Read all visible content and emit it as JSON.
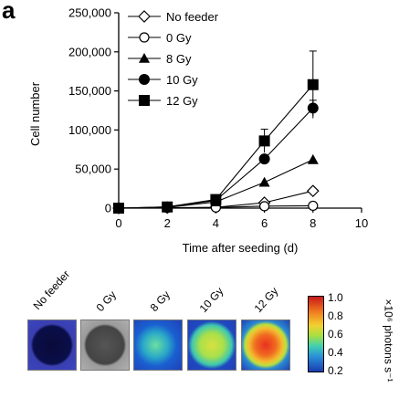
{
  "panel_label": "a",
  "chart_data": {
    "type": "line",
    "xlabel": "Time after seeding (d)",
    "ylabel": "Cell number",
    "xlim": [
      0,
      10
    ],
    "ylim": [
      0,
      250000
    ],
    "xticks": [
      "0",
      "2",
      "4",
      "6",
      "8",
      "10"
    ],
    "yticks": [
      "0",
      "50,000",
      "100,000",
      "150,000",
      "200,000",
      "250,000"
    ],
    "x": [
      0,
      2,
      4,
      6,
      8
    ],
    "series": [
      {
        "name": "No feeder",
        "marker": "open-diamond",
        "values": [
          0,
          500,
          1000,
          7000,
          22000
        ]
      },
      {
        "name": "0 Gy",
        "marker": "open-circle",
        "values": [
          0,
          300,
          800,
          2500,
          3000
        ]
      },
      {
        "name": "8 Gy",
        "marker": "filled-triangle",
        "values": [
          0,
          1000,
          8000,
          33000,
          62000
        ]
      },
      {
        "name": "10 Gy",
        "marker": "filled-circle",
        "values": [
          0,
          1500,
          10000,
          63000,
          128000
        ],
        "error": [
          0,
          0,
          0,
          0,
          10000
        ]
      },
      {
        "name": "12 Gy",
        "marker": "filled-square",
        "values": [
          0,
          1500,
          11000,
          86000,
          158000
        ],
        "error": [
          0,
          0,
          2000,
          15000,
          43000
        ]
      }
    ],
    "legend_position": "top-left",
    "grid": false
  },
  "wells": {
    "labels": [
      "No feeder",
      "0 Gy",
      "8 Gy",
      "10 Gy",
      "12 Gy"
    ]
  },
  "colorbar": {
    "ticks": [
      "1.0",
      "0.8",
      "0.6",
      "0.4",
      "0.2"
    ],
    "unit": "×10⁶ photons s⁻¹"
  }
}
